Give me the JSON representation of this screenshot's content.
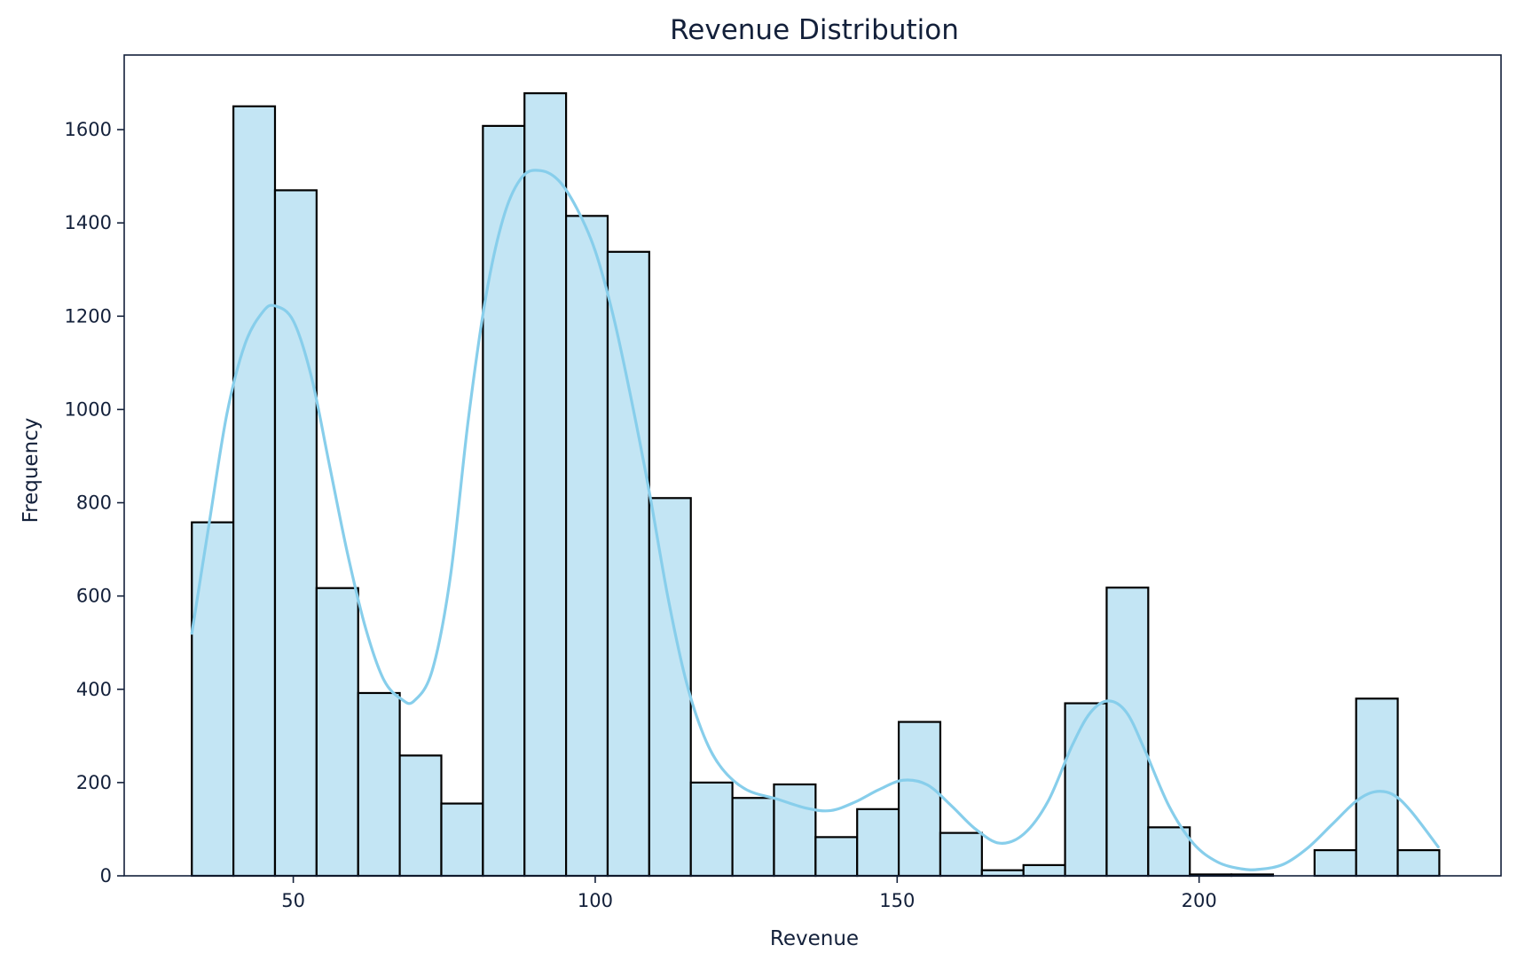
{
  "colors": {
    "bar_fill": "#c3e5f4",
    "bar_edge": "#000000",
    "kde_line": "#87ceeb",
    "text": "#13203a"
  },
  "chart_data": {
    "type": "bar",
    "subtype": "histogram",
    "title": "Revenue Distribution",
    "xlabel": "Revenue",
    "ylabel": "Frequency",
    "xlim": [
      22,
      250
    ],
    "ylim": [
      0,
      1760
    ],
    "xticks": [
      50,
      100,
      150,
      200
    ],
    "yticks": [
      0,
      200,
      400,
      600,
      800,
      1000,
      1200,
      1400,
      1600
    ],
    "grid": false,
    "legend": "none",
    "bins": {
      "start": 33.2,
      "width": 6.886,
      "counts": [
        758,
        1650,
        1470,
        617,
        392,
        258,
        155,
        1608,
        1678,
        1415,
        1338,
        810,
        200,
        167,
        196,
        83,
        143,
        330,
        92,
        12,
        23,
        370,
        618,
        104,
        3,
        3,
        0,
        55,
        380,
        55
      ]
    },
    "kde": {
      "x": [
        33.2,
        36,
        39,
        42,
        45,
        47,
        50,
        53,
        56,
        59,
        62,
        65,
        68,
        70,
        73,
        76,
        79,
        82,
        85,
        88,
        91,
        94,
        97,
        100,
        103,
        106,
        109,
        112,
        115,
        118,
        121,
        125,
        130,
        135,
        139,
        143,
        147,
        151,
        155,
        159,
        163,
        167,
        171,
        175,
        179,
        182,
        185,
        188,
        191,
        195,
        199,
        203,
        207,
        210,
        214,
        218,
        222,
        226,
        229,
        232,
        235,
        239.6
      ],
      "y": [
        520,
        750,
        990,
        1140,
        1210,
        1222,
        1190,
        1070,
        880,
        690,
        530,
        420,
        378,
        375,
        440,
        640,
        980,
        1250,
        1420,
        1500,
        1512,
        1490,
        1430,
        1340,
        1200,
        1020,
        820,
        600,
        420,
        300,
        230,
        185,
        165,
        145,
        140,
        158,
        185,
        205,
        195,
        150,
        100,
        70,
        90,
        160,
        280,
        350,
        375,
        350,
        270,
        150,
        70,
        30,
        15,
        14,
        25,
        60,
        110,
        160,
        180,
        175,
        140,
        62
      ]
    }
  }
}
